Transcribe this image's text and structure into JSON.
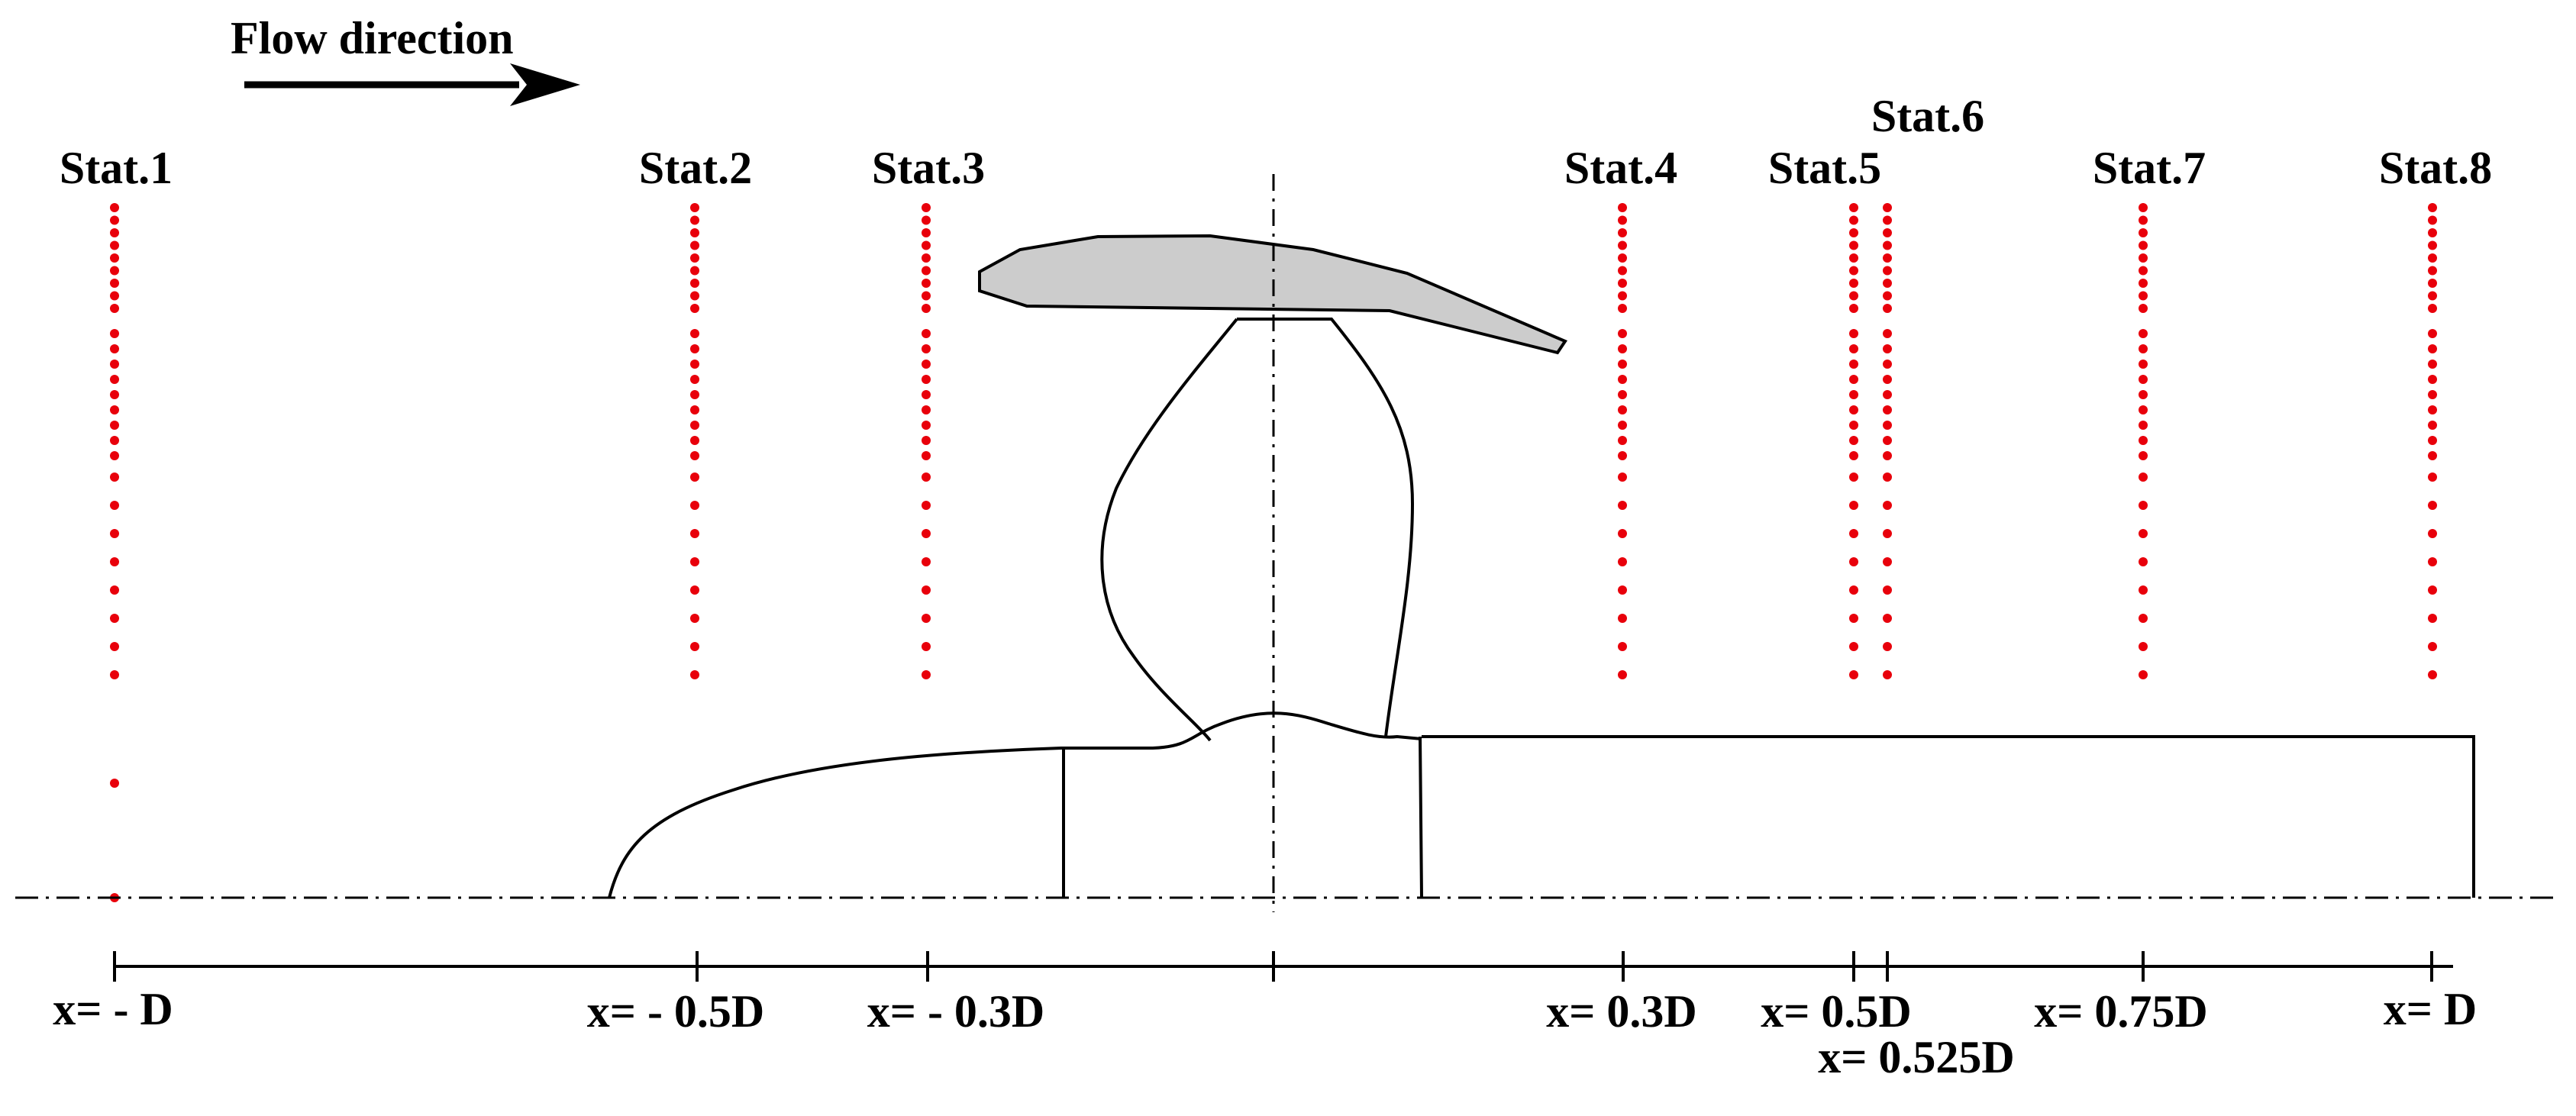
{
  "flow_label": "Flow direction",
  "stations": [
    {
      "label": "Stat.1",
      "x_label": "x= - D"
    },
    {
      "label": "Stat.2",
      "x_label": "x= - 0.5D"
    },
    {
      "label": "Stat.3",
      "x_label": "x= - 0.3D"
    },
    {
      "label": "Stat.4",
      "x_label": "x= 0.3D"
    },
    {
      "label": "Stat.5",
      "x_label": "x= 0.5D"
    },
    {
      "label": "Stat.6",
      "x_label": "x= 0.525D"
    },
    {
      "label": "Stat.7",
      "x_label": "x= 0.75D"
    },
    {
      "label": "Stat.8",
      "x_label": "x= D"
    }
  ],
  "colors": {
    "probe_points": "#e8000b",
    "duct_fill": "#cccccc",
    "lines": "#000000"
  }
}
